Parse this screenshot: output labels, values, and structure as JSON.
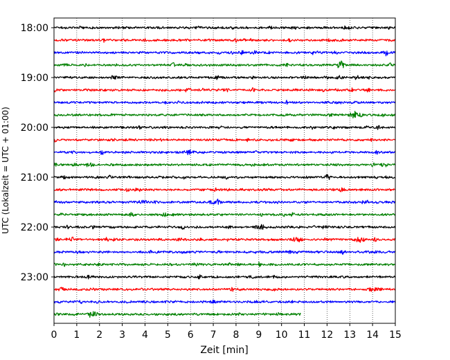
{
  "chart_data": {
    "type": "line",
    "title": "",
    "xlabel": "Zeit  [min]",
    "ylabel": "UTC (Lokalzeit = UTC + 01:00)",
    "xlim": [
      0,
      15
    ],
    "x_ticks": [
      0,
      1,
      2,
      3,
      4,
      5,
      6,
      7,
      8,
      9,
      10,
      11,
      12,
      13,
      14,
      15
    ],
    "y_tick_labels": [
      "18:00",
      "19:00",
      "20:00",
      "21:00",
      "22:00",
      "23:00"
    ],
    "grid": "vertical dotted at each minute",
    "legend": "none",
    "trace_colors": [
      "#000000",
      "#ff0000",
      "#0000ff",
      "#008000"
    ],
    "series": [
      {
        "start": "18:00",
        "color": "#000000",
        "x_end": 15
      },
      {
        "start": "18:15",
        "color": "#ff0000",
        "x_end": 15
      },
      {
        "start": "18:30",
        "color": "#0000ff",
        "x_end": 15
      },
      {
        "start": "18:45",
        "color": "#008000",
        "x_end": 15
      },
      {
        "start": "19:00",
        "color": "#000000",
        "x_end": 15
      },
      {
        "start": "19:15",
        "color": "#ff0000",
        "x_end": 15
      },
      {
        "start": "19:30",
        "color": "#0000ff",
        "x_end": 15
      },
      {
        "start": "19:45",
        "color": "#008000",
        "x_end": 15
      },
      {
        "start": "20:00",
        "color": "#000000",
        "x_end": 15
      },
      {
        "start": "20:15",
        "color": "#ff0000",
        "x_end": 15
      },
      {
        "start": "20:30",
        "color": "#0000ff",
        "x_end": 15
      },
      {
        "start": "20:45",
        "color": "#008000",
        "x_end": 15
      },
      {
        "start": "21:00",
        "color": "#000000",
        "x_end": 15
      },
      {
        "start": "21:15",
        "color": "#ff0000",
        "x_end": 15
      },
      {
        "start": "21:30",
        "color": "#0000ff",
        "x_end": 15
      },
      {
        "start": "21:45",
        "color": "#008000",
        "x_end": 15
      },
      {
        "start": "22:00",
        "color": "#000000",
        "x_end": 15
      },
      {
        "start": "22:15",
        "color": "#ff0000",
        "x_end": 15
      },
      {
        "start": "22:30",
        "color": "#0000ff",
        "x_end": 15
      },
      {
        "start": "22:45",
        "color": "#008000",
        "x_end": 15
      },
      {
        "start": "23:00",
        "color": "#000000",
        "x_end": 15
      },
      {
        "start": "23:15",
        "color": "#ff0000",
        "x_end": 15
      },
      {
        "start": "23:30",
        "color": "#0000ff",
        "x_end": 15
      },
      {
        "start": "23:45",
        "color": "#008000",
        "x_end": 10.85
      }
    ],
    "events": [
      {
        "start": "18:45",
        "x": 12.6,
        "amp": 3.5
      },
      {
        "start": "19:45",
        "x": 13.2,
        "amp": 4.5
      },
      {
        "start": "20:30",
        "x": 5.9,
        "amp": 3.5
      },
      {
        "start": "21:30",
        "x": 7.2,
        "amp": 3
      },
      {
        "start": "22:00",
        "x": 9.1,
        "amp": 3
      },
      {
        "start": "22:15",
        "x": 13.4,
        "amp": 3.5
      },
      {
        "start": "22:15",
        "x": 10.7,
        "amp": 3
      },
      {
        "start": "23:15",
        "x": 14.2,
        "amp": 3
      },
      {
        "start": "23:45",
        "x": 1.7,
        "amp": 4
      }
    ]
  }
}
